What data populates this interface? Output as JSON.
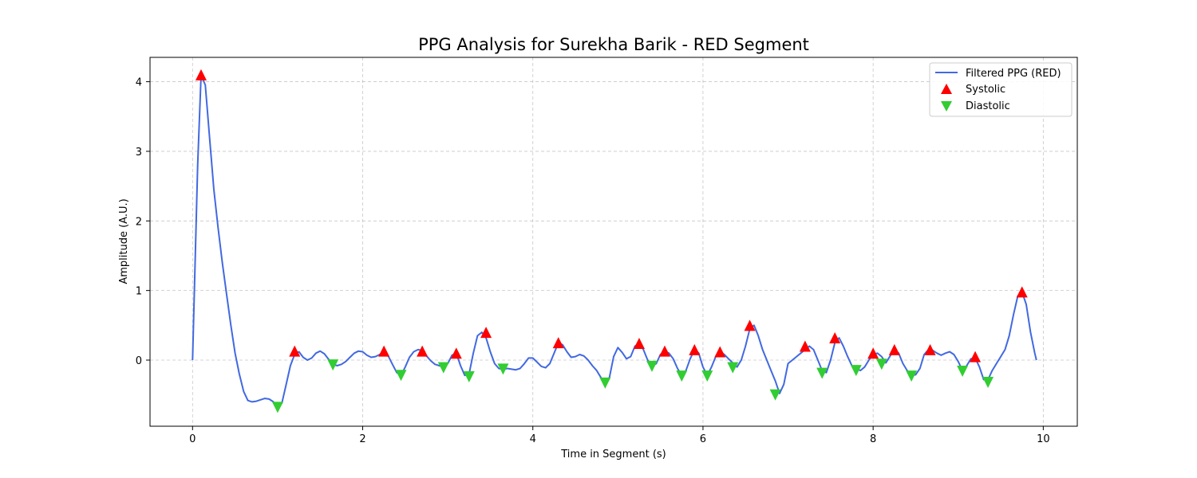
{
  "chart_data": {
    "type": "line",
    "title": "PPG Analysis for Surekha Barik - RED Segment",
    "xlabel": "Time in Segment (s)",
    "ylabel": "Amplitude (A.U.)",
    "xlim": [
      -0.5,
      10.4
    ],
    "ylim": [
      -0.95,
      4.35
    ],
    "xticks": [
      0,
      2,
      4,
      6,
      8,
      10
    ],
    "yticks": [
      0,
      1,
      2,
      3,
      4
    ],
    "grid": true,
    "legend_position": "top-right",
    "colors": {
      "line": "#4169e1",
      "systolic": "#ff0000",
      "diastolic": "#32cd32"
    },
    "series": [
      {
        "name": "Filtered PPG (RED)",
        "kind": "line",
        "x": [
          0,
          0.06,
          0.1,
          0.15,
          0.2,
          0.25,
          0.3,
          0.35,
          0.4,
          0.45,
          0.5,
          0.55,
          0.6,
          0.65,
          0.7,
          0.75,
          0.8,
          0.85,
          0.9,
          0.95,
          1.0,
          1.05,
          1.1,
          1.15,
          1.2,
          1.25,
          1.3,
          1.35,
          1.4,
          1.45,
          1.5,
          1.55,
          1.6,
          1.65,
          1.7,
          1.75,
          1.8,
          1.85,
          1.9,
          1.95,
          2.0,
          2.05,
          2.1,
          2.15,
          2.2,
          2.25,
          2.3,
          2.35,
          2.4,
          2.45,
          2.5,
          2.55,
          2.6,
          2.65,
          2.7,
          2.75,
          2.8,
          2.85,
          2.9,
          2.95,
          3.0,
          3.05,
          3.1,
          3.15,
          3.2,
          3.25,
          3.3,
          3.35,
          3.4,
          3.45,
          3.5,
          3.55,
          3.6,
          3.65,
          3.7,
          3.75,
          3.8,
          3.85,
          3.9,
          3.95,
          4.0,
          4.05,
          4.1,
          4.15,
          4.2,
          4.25,
          4.3,
          4.35,
          4.4,
          4.45,
          4.5,
          4.55,
          4.6,
          4.65,
          4.7,
          4.75,
          4.8,
          4.85,
          4.9,
          4.95,
          5.0,
          5.05,
          5.1,
          5.15,
          5.2,
          5.25,
          5.3,
          5.35,
          5.4,
          5.45,
          5.5,
          5.55,
          5.6,
          5.65,
          5.7,
          5.75,
          5.8,
          5.85,
          5.9,
          5.95,
          6.0,
          6.05,
          6.1,
          6.15,
          6.2,
          6.25,
          6.3,
          6.35,
          6.4,
          6.45,
          6.5,
          6.55,
          6.6,
          6.65,
          6.7,
          6.75,
          6.8,
          6.85,
          6.9,
          6.95,
          7.0,
          7.05,
          7.1,
          7.15,
          7.2,
          7.25,
          7.3,
          7.35,
          7.4,
          7.45,
          7.5,
          7.55,
          7.6,
          7.65,
          7.7,
          7.75,
          7.8,
          7.85,
          7.9,
          7.95,
          8.0,
          8.05,
          8.1,
          8.15,
          8.2,
          8.25,
          8.3,
          8.35,
          8.4,
          8.45,
          8.5,
          8.55,
          8.6,
          8.65,
          8.7,
          8.75,
          8.8,
          8.85,
          8.9,
          8.95,
          9.0,
          9.05,
          9.1,
          9.15,
          9.2,
          9.25,
          9.3,
          9.35,
          9.4,
          9.45,
          9.5,
          9.55,
          9.6,
          9.65,
          9.7,
          9.75,
          9.8,
          9.85,
          9.9,
          9.92
        ],
        "y": [
          0,
          2.8,
          4.1,
          3.95,
          3.2,
          2.45,
          1.9,
          1.4,
          0.95,
          0.5,
          0.1,
          -0.2,
          -0.45,
          -0.58,
          -0.6,
          -0.59,
          -0.57,
          -0.55,
          -0.56,
          -0.6,
          -0.66,
          -0.62,
          -0.35,
          -0.08,
          0.08,
          0.12,
          0.04,
          0,
          0.03,
          0.1,
          0.13,
          0.09,
          0.01,
          -0.06,
          -0.08,
          -0.06,
          -0.02,
          0.04,
          0.1,
          0.13,
          0.12,
          0.07,
          0.04,
          0.05,
          0.08,
          0.12,
          0.06,
          -0.06,
          -0.18,
          -0.22,
          -0.1,
          0.04,
          0.12,
          0.15,
          0.14,
          0.06,
          -0.01,
          -0.06,
          -0.08,
          -0.1,
          -0.05,
          0.07,
          0.1,
          -0.08,
          -0.22,
          -0.2,
          0.1,
          0.35,
          0.4,
          0.32,
          0.12,
          -0.05,
          -0.12,
          -0.13,
          -0.12,
          -0.13,
          -0.14,
          -0.12,
          -0.05,
          0.03,
          0.03,
          -0.03,
          -0.09,
          -0.11,
          -0.05,
          0.1,
          0.25,
          0.22,
          0.12,
          0.04,
          0.05,
          0.08,
          0.06,
          0,
          -0.08,
          -0.15,
          -0.25,
          -0.32,
          -0.25,
          0.05,
          0.18,
          0.11,
          0.02,
          0.05,
          0.2,
          0.24,
          0.15,
          0,
          -0.09,
          -0.05,
          0.08,
          0.13,
          0.1,
          0.02,
          -0.12,
          -0.22,
          -0.15,
          0.02,
          0.15,
          0.1,
          -0.1,
          -0.22,
          -0.1,
          0.05,
          0.12,
          0.08,
          0.02,
          -0.04,
          -0.1,
          0,
          0.2,
          0.45,
          0.5,
          0.35,
          0.15,
          0,
          -0.15,
          -0.3,
          -0.48,
          -0.35,
          -0.05,
          0,
          0.05,
          0.1,
          0.15,
          0.2,
          0.15,
          0,
          -0.15,
          -0.18,
          0,
          0.25,
          0.32,
          0.2,
          0.05,
          -0.08,
          -0.12,
          -0.15,
          -0.1,
          0,
          0.08,
          0.1,
          0.05,
          -0.04,
          0.06,
          0.15,
          0.1,
          -0.05,
          -0.15,
          -0.22,
          -0.21,
          -0.12,
          0.08,
          0.15,
          0.14,
          0.1,
          0.07,
          0.1,
          0.12,
          0.08,
          -0.02,
          -0.15,
          -0.08,
          0.02,
          0.03,
          -0.1,
          -0.28,
          -0.28,
          -0.15,
          -0.05,
          0.05,
          0.15,
          0.35,
          0.65,
          0.92,
          0.98,
          0.8,
          0.4,
          0.1,
          0
        ]
      },
      {
        "name": "Systolic",
        "kind": "markers",
        "marker": "triangle-up",
        "x": [
          0.1,
          1.2,
          2.25,
          2.7,
          3.1,
          3.45,
          4.3,
          5.25,
          5.55,
          5.9,
          6.2,
          6.55,
          7.2,
          7.55,
          8.0,
          8.25,
          8.67,
          9.2,
          9.75
        ],
        "y": [
          4.1,
          0.13,
          0.13,
          0.13,
          0.1,
          0.4,
          0.25,
          0.24,
          0.13,
          0.15,
          0.12,
          0.5,
          0.2,
          0.32,
          0.1,
          0.15,
          0.15,
          0.05,
          0.98
        ]
      },
      {
        "name": "Diastolic",
        "kind": "markers",
        "marker": "triangle-down",
        "x": [
          1.0,
          1.65,
          2.45,
          2.95,
          3.25,
          3.65,
          4.85,
          5.4,
          5.75,
          6.05,
          6.35,
          6.85,
          7.4,
          7.8,
          8.1,
          8.45,
          9.05,
          9.35
        ],
        "y": [
          -0.68,
          -0.07,
          -0.22,
          -0.11,
          -0.24,
          -0.13,
          -0.33,
          -0.09,
          -0.23,
          -0.23,
          -0.11,
          -0.5,
          -0.19,
          -0.15,
          -0.06,
          -0.23,
          -0.16,
          -0.32
        ]
      }
    ]
  }
}
